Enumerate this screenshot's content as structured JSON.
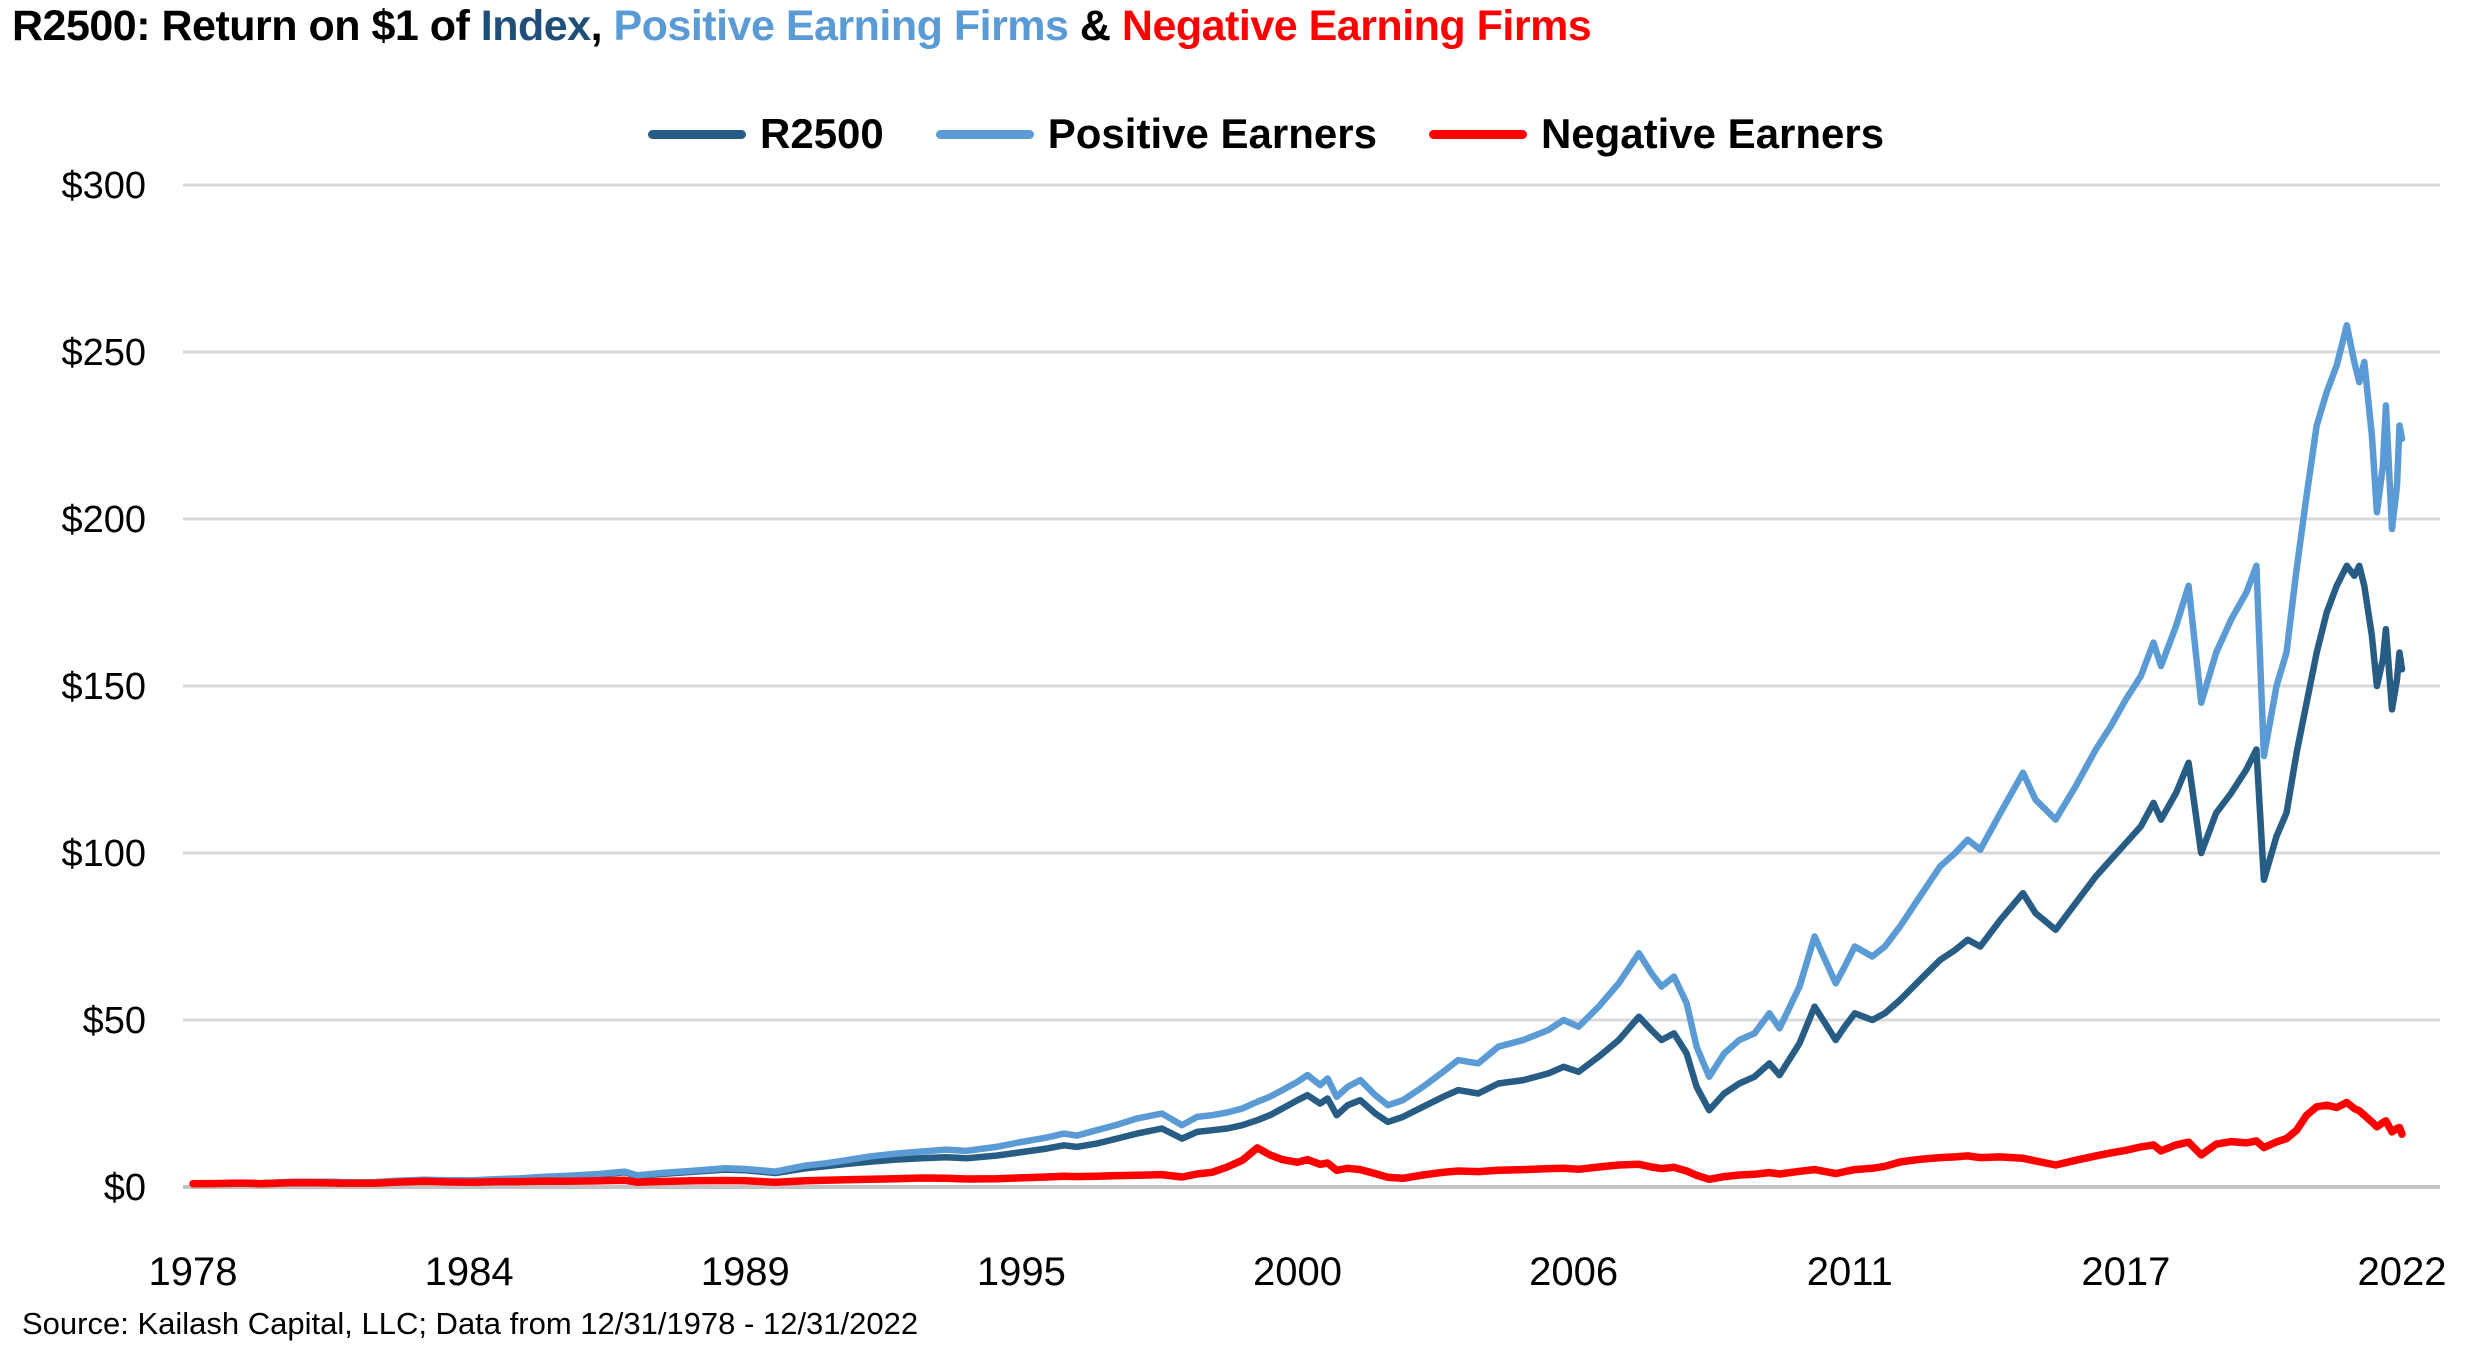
{
  "title": {
    "part1": "R2500: Return on $1 of ",
    "part2": "Index",
    "part3": ", ",
    "part4": "Positive Earning Firms",
    "part5": " & ",
    "part6": "Negative Earning Firms"
  },
  "source": "Source: Kailash Capital, LLC; Data from 12/31/1978 - 12/31/2022",
  "palette": {
    "r2500": "#275c85",
    "positive": "#5b9bd5",
    "negative": "#ff0000",
    "gridline": "#d9d9d9",
    "baseline": "#c3c3c3",
    "text": "#000000"
  },
  "chart_data": {
    "type": "line",
    "title": "R2500: Return on $1 of Index, Positive Earning Firms & Negative Earning Firms",
    "xlabel": "",
    "ylabel": "",
    "grid": "horizontal",
    "legend_position": "top-center",
    "ylim": [
      0,
      300
    ],
    "y_ticks": [
      {
        "label": "$0",
        "value": 0
      },
      {
        "label": "$50",
        "value": 50
      },
      {
        "label": "$100",
        "value": 100
      },
      {
        "label": "$150",
        "value": 150
      },
      {
        "label": "$200",
        "value": 200
      },
      {
        "label": "$250",
        "value": 250
      },
      {
        "label": "$300",
        "value": 300
      }
    ],
    "x_ticks": [
      {
        "label": "1978",
        "year": 1979.0
      },
      {
        "label": "1984",
        "year": 1984.5
      },
      {
        "label": "1989",
        "year": 1990.0
      },
      {
        "label": "1995",
        "year": 1995.5
      },
      {
        "label": "2000",
        "year": 2001.0
      },
      {
        "label": "2006",
        "year": 2006.5
      },
      {
        "label": "2011",
        "year": 2012.0
      },
      {
        "label": "2017",
        "year": 2017.5
      },
      {
        "label": "2022",
        "year": 2023.0
      }
    ],
    "xlim": [
      1979.0,
      2023.0
    ],
    "x": [
      1979.0,
      1979.4,
      1979.8,
      1980.1,
      1980.35,
      1981.0,
      1981.5,
      1982.0,
      1982.6,
      1983.0,
      1983.6,
      1984.1,
      1984.6,
      1985.0,
      1985.5,
      1986.0,
      1986.4,
      1987.0,
      1987.6,
      1987.85,
      1988.3,
      1989.0,
      1989.6,
      1990.0,
      1990.6,
      1991.2,
      1991.6,
      1992.0,
      1992.5,
      1993.0,
      1993.5,
      1994.0,
      1994.4,
      1995.0,
      1995.4,
      1996.0,
      1996.35,
      1996.6,
      1997.0,
      1997.4,
      1997.8,
      1998.3,
      1998.7,
      1999.0,
      1999.3,
      1999.6,
      1999.9,
      2000.2,
      2000.45,
      2000.7,
      2001.0,
      2001.2,
      2001.45,
      2001.6,
      2001.78,
      2002.0,
      2002.25,
      2002.55,
      2002.8,
      2003.1,
      2003.5,
      2003.9,
      2004.2,
      2004.6,
      2005.0,
      2005.5,
      2006.0,
      2006.3,
      2006.6,
      2007.0,
      2007.4,
      2007.8,
      2008.05,
      2008.25,
      2008.5,
      2008.75,
      2008.95,
      2009.2,
      2009.5,
      2009.8,
      2010.1,
      2010.4,
      2010.6,
      2011.0,
      2011.3,
      2011.72,
      2011.9,
      2012.1,
      2012.45,
      2012.7,
      2013.0,
      2013.4,
      2013.8,
      2014.1,
      2014.35,
      2014.6,
      2015.0,
      2015.45,
      2015.7,
      2016.1,
      2016.5,
      2016.9,
      2017.2,
      2017.5,
      2017.8,
      2018.05,
      2018.2,
      2018.5,
      2018.75,
      2019.0,
      2019.3,
      2019.6,
      2019.9,
      2020.1,
      2020.25,
      2020.5,
      2020.7,
      2020.9,
      2021.1,
      2021.3,
      2021.5,
      2021.7,
      2021.9,
      2022.05,
      2022.15,
      2022.25,
      2022.4,
      2022.5,
      2022.62,
      2022.68,
      2022.8,
      2022.9,
      2022.95,
      2023.0
    ],
    "series": [
      {
        "name": "R2500",
        "color": "#275c85",
        "values": [
          1.0,
          1.08,
          1.17,
          1.22,
          1.1,
          1.5,
          1.55,
          1.42,
          1.38,
          1.75,
          2.1,
          1.95,
          1.92,
          2.2,
          2.45,
          2.9,
          3.1,
          3.6,
          4.4,
          3.3,
          3.9,
          4.6,
          5.2,
          5.0,
          4.2,
          5.6,
          6.2,
          6.9,
          7.6,
          8.2,
          8.6,
          8.9,
          8.6,
          9.4,
          10.2,
          11.5,
          12.5,
          12.0,
          13.0,
          14.5,
          16.0,
          17.5,
          14.5,
          16.5,
          17.0,
          17.5,
          18.5,
          20.0,
          21.5,
          23.5,
          26.0,
          27.5,
          25.0,
          26.5,
          21.5,
          24.5,
          26.0,
          22.0,
          19.5,
          21.0,
          24.0,
          27.0,
          29.0,
          28.0,
          31.0,
          32.0,
          34.0,
          36.0,
          34.5,
          39.0,
          44.0,
          51.0,
          47.0,
          44.0,
          46.0,
          40.0,
          30.0,
          23.0,
          28.0,
          31.0,
          33.0,
          37.0,
          33.5,
          43.0,
          54.0,
          44.0,
          48.0,
          52.0,
          50.0,
          52.0,
          56.0,
          62.0,
          68.0,
          71.0,
          74.0,
          72.0,
          80.0,
          88.0,
          82.0,
          77.0,
          85.0,
          93.0,
          98.0,
          103.0,
          108.0,
          115.0,
          110.0,
          118.0,
          127.0,
          100.0,
          112.0,
          118.0,
          125.0,
          131.0,
          92.0,
          105.0,
          112.0,
          130.0,
          145.0,
          160.0,
          172.0,
          180.0,
          186.0,
          183.0,
          186.0,
          180.0,
          165.0,
          150.0,
          158.0,
          167.0,
          143.0,
          152.0,
          160.0,
          155.0
        ]
      },
      {
        "name": "Positive Earners",
        "color": "#5b9bd5",
        "values": [
          1.0,
          1.1,
          1.2,
          1.25,
          1.13,
          1.55,
          1.6,
          1.47,
          1.43,
          1.82,
          2.2,
          2.05,
          2.02,
          2.32,
          2.58,
          3.05,
          3.3,
          3.8,
          4.6,
          3.5,
          4.15,
          4.9,
          5.6,
          5.4,
          4.6,
          6.4,
          7.1,
          8.0,
          9.2,
          10.0,
          10.6,
          11.2,
          10.8,
          12.0,
          13.2,
          14.8,
          16.0,
          15.4,
          17.0,
          18.6,
          20.5,
          22.0,
          18.5,
          21.0,
          21.5,
          22.3,
          23.5,
          25.5,
          27.0,
          29.0,
          31.5,
          33.5,
          30.5,
          32.5,
          27.0,
          30.0,
          32.0,
          27.5,
          24.5,
          26.0,
          30.0,
          34.5,
          38.0,
          37.0,
          42.0,
          44.0,
          47.0,
          50.0,
          48.0,
          54.0,
          61.0,
          70.0,
          64.0,
          60.0,
          63.0,
          55.0,
          42.0,
          33.0,
          40.0,
          44.0,
          46.0,
          52.0,
          47.5,
          60.0,
          75.0,
          61.0,
          66.0,
          72.0,
          69.0,
          72.0,
          78.0,
          87.0,
          96.0,
          100.0,
          104.0,
          101.0,
          112.0,
          124.0,
          116.0,
          110.0,
          120.0,
          131.0,
          138.0,
          146.0,
          153.0,
          163.0,
          156.0,
          168.0,
          180.0,
          145.0,
          160.0,
          170.0,
          178.0,
          186.0,
          129.0,
          150.0,
          160.0,
          185.0,
          207.0,
          228.0,
          238.0,
          246.0,
          258.0,
          247.0,
          241.0,
          247.0,
          225.0,
          202.0,
          216.0,
          234.0,
          197.0,
          210.0,
          228.0,
          224.0
        ]
      },
      {
        "name": "Negative Earners",
        "color": "#ff0000",
        "values": [
          1.0,
          1.03,
          1.1,
          1.12,
          1.0,
          1.32,
          1.28,
          1.15,
          1.1,
          1.42,
          1.72,
          1.5,
          1.42,
          1.55,
          1.62,
          1.78,
          1.72,
          1.82,
          2.0,
          1.45,
          1.65,
          1.85,
          1.95,
          1.85,
          1.4,
          1.9,
          2.05,
          2.15,
          2.3,
          2.5,
          2.7,
          2.6,
          2.4,
          2.5,
          2.7,
          3.0,
          3.2,
          3.1,
          3.2,
          3.4,
          3.5,
          3.7,
          3.0,
          3.9,
          4.4,
          6.0,
          8.0,
          11.7,
          9.6,
          8.2,
          7.4,
          8.2,
          6.8,
          7.2,
          5.0,
          5.6,
          5.2,
          4.0,
          2.9,
          2.6,
          3.6,
          4.4,
          4.8,
          4.6,
          5.0,
          5.2,
          5.5,
          5.6,
          5.3,
          6.0,
          6.6,
          6.8,
          6.0,
          5.5,
          5.9,
          4.8,
          3.5,
          2.3,
          3.1,
          3.6,
          3.8,
          4.3,
          3.9,
          4.7,
          5.2,
          4.0,
          4.6,
          5.2,
          5.6,
          6.2,
          7.5,
          8.3,
          8.8,
          9.0,
          9.3,
          8.8,
          9.0,
          8.6,
          7.8,
          6.6,
          8.0,
          9.3,
          10.2,
          11.0,
          12.0,
          12.6,
          10.8,
          12.6,
          13.4,
          9.6,
          12.8,
          13.6,
          13.2,
          13.8,
          11.8,
          13.5,
          14.5,
          17.0,
          21.5,
          24.0,
          24.5,
          23.8,
          25.3,
          23.5,
          22.8,
          21.5,
          19.5,
          18.0,
          19.3,
          19.8,
          16.5,
          17.5,
          17.8,
          15.8
        ]
      }
    ],
    "source": "Source: Kailash Capital, LLC; Data from 12/31/1978 - 12/31/2022"
  }
}
